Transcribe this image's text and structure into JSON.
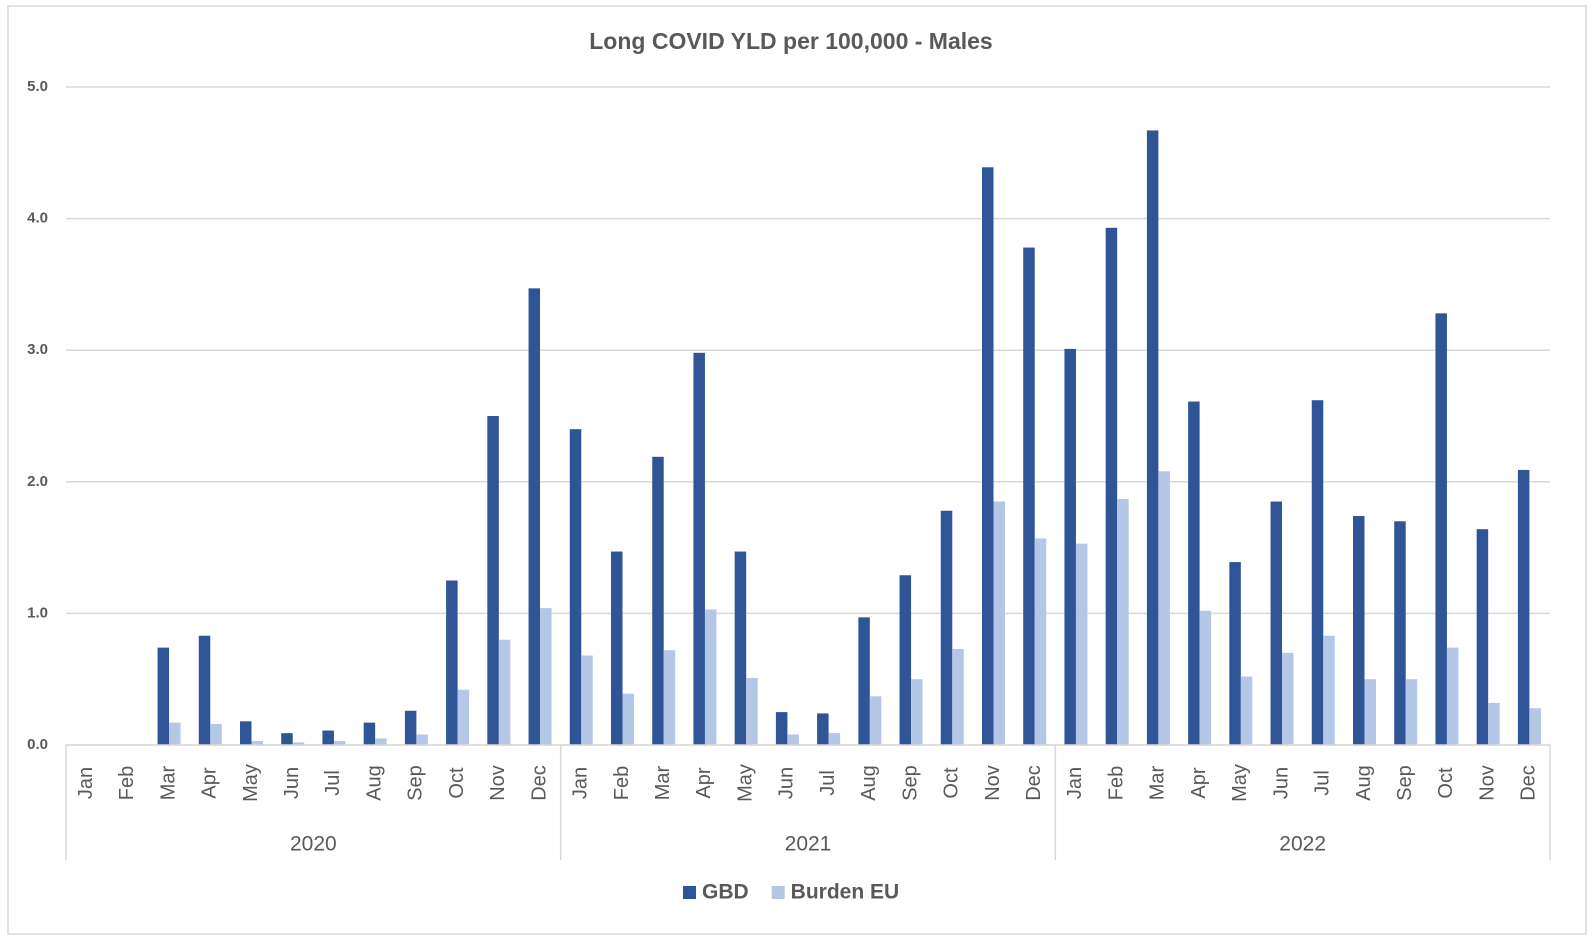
{
  "chart_data": {
    "type": "bar",
    "title": "Long COVID YLD per 100,000 - Males",
    "categories": [
      "Jan",
      "Feb",
      "Mar",
      "Apr",
      "May",
      "Jun",
      "Jul",
      "Aug",
      "Sep",
      "Oct",
      "Nov",
      "Dec",
      "Jan",
      "Feb",
      "Mar",
      "Apr",
      "May",
      "Jun",
      "Jul",
      "Aug",
      "Sep",
      "Oct",
      "Nov",
      "Dec",
      "Jan",
      "Feb",
      "Mar",
      "Apr",
      "May",
      "Jun",
      "Jul",
      "Aug",
      "Sep",
      "Oct",
      "Nov",
      "Dec"
    ],
    "groups": [
      "2020",
      "2021",
      "2022"
    ],
    "series": [
      {
        "name": "GBD",
        "color": "#2f5597",
        "values": [
          0,
          0,
          0.74,
          0.83,
          0.18,
          0.09,
          0.11,
          0.17,
          0.26,
          1.25,
          2.5,
          3.47,
          2.4,
          1.47,
          2.19,
          2.98,
          1.47,
          0.25,
          0.24,
          0.97,
          1.29,
          1.78,
          4.39,
          3.78,
          3.01,
          3.93,
          4.67,
          2.61,
          1.39,
          1.85,
          2.62,
          1.74,
          1.7,
          3.28,
          1.64,
          2.09
        ]
      },
      {
        "name": "Burden EU",
        "color": "#b4c7e7",
        "values": [
          0,
          0,
          0.17,
          0.16,
          0.03,
          0.02,
          0.03,
          0.05,
          0.08,
          0.42,
          0.8,
          1.04,
          0.68,
          0.39,
          0.72,
          1.03,
          0.51,
          0.08,
          0.09,
          0.37,
          0.5,
          0.73,
          1.85,
          1.57,
          1.53,
          1.87,
          2.08,
          1.02,
          0.52,
          0.7,
          0.83,
          0.5,
          0.5,
          0.74,
          0.32,
          0.28
        ]
      }
    ],
    "ylim": [
      0,
      5
    ],
    "yticks": [
      {
        "value": 0,
        "label": "0.0"
      },
      {
        "value": 1,
        "label": "1.0"
      },
      {
        "value": 2,
        "label": "2.0"
      },
      {
        "value": 3,
        "label": "3.0"
      },
      {
        "value": 4,
        "label": "4.0"
      },
      {
        "value": 5,
        "label": "5.0"
      }
    ],
    "grid": true,
    "legend": "bottom"
  }
}
